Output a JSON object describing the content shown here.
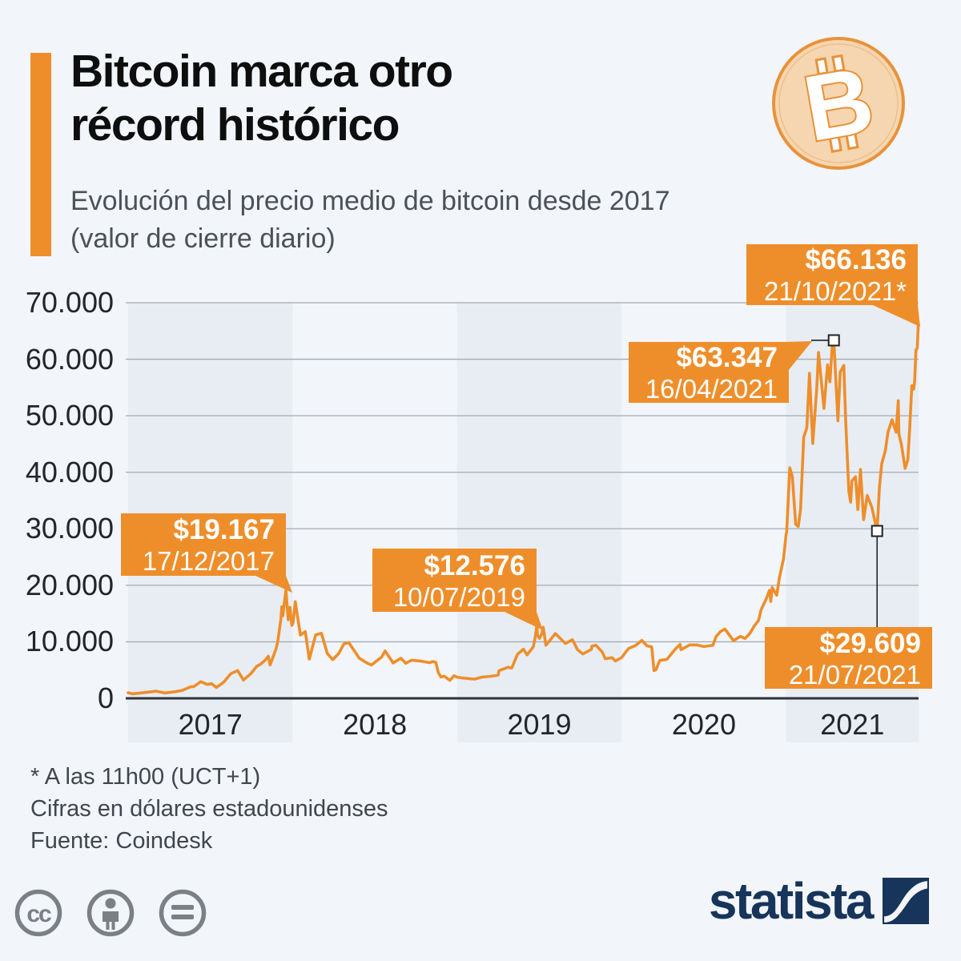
{
  "colors": {
    "accent_orange": "#EE8E2B",
    "coin_fill": "#F5D6B0",
    "band": "#e8edf4",
    "navy": "#17345A",
    "grid": "#a5abb4",
    "axis": "#2e3338"
  },
  "header": {
    "title_line1": "Bitcoin marca otro",
    "title_line2": "récord histórico",
    "subtitle_line1": "Evolución del precio medio de bitcoin desde 2017",
    "subtitle_line2": "(valor de cierre diario)",
    "coin_symbol": "B"
  },
  "chart_data": {
    "type": "line",
    "title": "Evolución del precio medio de bitcoin desde 2017 (valor de cierre diario)",
    "xlabel": "",
    "ylabel": "",
    "ylim": [
      0,
      70000
    ],
    "x_start": "01/01/2017",
    "x_end": "21/10/2021",
    "grid": true,
    "y_ticks": [
      {
        "value": 70000,
        "label": "70.000"
      },
      {
        "value": 60000,
        "label": "60.000"
      },
      {
        "value": 50000,
        "label": "50.000"
      },
      {
        "value": 40000,
        "label": "40.000"
      },
      {
        "value": 30000,
        "label": "30.000"
      },
      {
        "value": 20000,
        "label": "20.000"
      },
      {
        "value": 10000,
        "label": "10.000"
      },
      {
        "value": 0,
        "label": "0"
      }
    ],
    "x_ticks": [
      {
        "label": "2017",
        "shaded": true
      },
      {
        "label": "2018",
        "shaded": false
      },
      {
        "label": "2019",
        "shaded": true
      },
      {
        "label": "2020",
        "shaded": false
      },
      {
        "label": "2021",
        "shaded": true
      }
    ],
    "series": [
      {
        "name": "Precio medio de bitcoin (USD, cierre diario)",
        "color": "#EE8E2B",
        "points": [
          [
            0.0,
            995
          ],
          [
            0.027,
            800
          ],
          [
            0.082,
            965
          ],
          [
            0.148,
            1180
          ],
          [
            0.167,
            1280
          ],
          [
            0.225,
            950
          ],
          [
            0.288,
            1180
          ],
          [
            0.329,
            1420
          ],
          [
            0.381,
            2040
          ],
          [
            0.4,
            2080
          ],
          [
            0.441,
            2950
          ],
          [
            0.482,
            2450
          ],
          [
            0.507,
            2600
          ],
          [
            0.537,
            1930
          ],
          [
            0.581,
            2860
          ],
          [
            0.625,
            4380
          ],
          [
            0.666,
            4900
          ],
          [
            0.701,
            3230
          ],
          [
            0.748,
            4400
          ],
          [
            0.781,
            5650
          ],
          [
            0.803,
            6000
          ],
          [
            0.833,
            6750
          ],
          [
            0.852,
            7450
          ],
          [
            0.863,
            5900
          ],
          [
            0.899,
            8750
          ],
          [
            0.91,
            10100
          ],
          [
            0.929,
            14090
          ],
          [
            0.934,
            16200
          ],
          [
            0.94,
            14600
          ],
          [
            0.959,
            19167
          ],
          [
            0.973,
            13900
          ],
          [
            0.984,
            16100
          ],
          [
            0.995,
            12900
          ],
          [
            1.003,
            13400
          ],
          [
            1.016,
            17100
          ],
          [
            1.047,
            11200
          ],
          [
            1.077,
            11800
          ],
          [
            1.101,
            6950
          ],
          [
            1.14,
            11230
          ],
          [
            1.175,
            11500
          ],
          [
            1.211,
            7900
          ],
          [
            1.244,
            6850
          ],
          [
            1.28,
            7900
          ],
          [
            1.312,
            9650
          ],
          [
            1.342,
            9840
          ],
          [
            1.405,
            7100
          ],
          [
            1.449,
            6300
          ],
          [
            1.479,
            5900
          ],
          [
            1.542,
            7320
          ],
          [
            1.562,
            8400
          ],
          [
            1.611,
            6250
          ],
          [
            1.658,
            7100
          ],
          [
            1.688,
            6200
          ],
          [
            1.723,
            6750
          ],
          [
            1.775,
            6600
          ],
          [
            1.833,
            6300
          ],
          [
            1.852,
            6500
          ],
          [
            1.871,
            6350
          ],
          [
            1.885,
            4600
          ],
          [
            1.901,
            3780
          ],
          [
            1.923,
            3900
          ],
          [
            1.956,
            3180
          ],
          [
            1.981,
            4000
          ],
          [
            2.0,
            3740
          ],
          [
            2.027,
            3630
          ],
          [
            2.085,
            3440
          ],
          [
            2.107,
            3400
          ],
          [
            2.151,
            3760
          ],
          [
            2.203,
            3900
          ],
          [
            2.249,
            4100
          ],
          [
            2.255,
            4900
          ],
          [
            2.31,
            5500
          ],
          [
            2.332,
            5350
          ],
          [
            2.367,
            7800
          ],
          [
            2.403,
            8700
          ],
          [
            2.425,
            7700
          ],
          [
            2.463,
            9100
          ],
          [
            2.474,
            10700
          ],
          [
            2.485,
            12900
          ],
          [
            2.488,
            11160
          ],
          [
            2.501,
            10600
          ],
          [
            2.515,
            11450
          ],
          [
            2.523,
            12576
          ],
          [
            2.54,
            9400
          ],
          [
            2.597,
            11470
          ],
          [
            2.658,
            9700
          ],
          [
            2.701,
            10360
          ],
          [
            2.732,
            8600
          ],
          [
            2.764,
            7850
          ],
          [
            2.816,
            8660
          ],
          [
            2.819,
            9230
          ],
          [
            2.844,
            9400
          ],
          [
            2.882,
            8200
          ],
          [
            2.901,
            7000
          ],
          [
            2.942,
            7200
          ],
          [
            2.962,
            6600
          ],
          [
            3.0,
            7200
          ],
          [
            3.041,
            8800
          ],
          [
            3.085,
            9350
          ],
          [
            3.123,
            10250
          ],
          [
            3.153,
            9300
          ],
          [
            3.183,
            9100
          ],
          [
            3.197,
            4900
          ],
          [
            3.208,
            5050
          ],
          [
            3.232,
            6700
          ],
          [
            3.276,
            6900
          ],
          [
            3.328,
            8770
          ],
          [
            3.355,
            9550
          ],
          [
            3.361,
            8600
          ],
          [
            3.413,
            9450
          ],
          [
            3.456,
            9450
          ],
          [
            3.5,
            9150
          ],
          [
            3.555,
            9390
          ],
          [
            3.574,
            10900
          ],
          [
            3.598,
            11750
          ],
          [
            3.628,
            12250
          ],
          [
            3.68,
            10200
          ],
          [
            3.721,
            10950
          ],
          [
            3.751,
            10600
          ],
          [
            3.781,
            11550
          ],
          [
            3.806,
            12800
          ],
          [
            3.833,
            13800
          ],
          [
            3.847,
            15600
          ],
          [
            3.88,
            17650
          ],
          [
            3.899,
            19100
          ],
          [
            3.907,
            17150
          ],
          [
            3.915,
            19625
          ],
          [
            3.943,
            18250
          ],
          [
            3.959,
            21300
          ],
          [
            3.984,
            24700
          ],
          [
            4.0,
            29000
          ],
          [
            4.003,
            29400
          ],
          [
            4.022,
            40800
          ],
          [
            4.038,
            39200
          ],
          [
            4.058,
            30800
          ],
          [
            4.074,
            30400
          ],
          [
            4.088,
            33500
          ],
          [
            4.107,
            46200
          ],
          [
            4.126,
            47900
          ],
          [
            4.142,
            57500
          ],
          [
            4.162,
            45100
          ],
          [
            4.186,
            54900
          ],
          [
            4.197,
            61200
          ],
          [
            4.23,
            51300
          ],
          [
            4.252,
            59000
          ],
          [
            4.266,
            56000
          ],
          [
            4.282,
            63200
          ],
          [
            4.29,
            63347
          ],
          [
            4.315,
            49100
          ],
          [
            4.329,
            57750
          ],
          [
            4.351,
            58900
          ],
          [
            4.362,
            49150
          ],
          [
            4.381,
            36700
          ],
          [
            4.392,
            34700
          ],
          [
            4.4,
            38500
          ],
          [
            4.422,
            39200
          ],
          [
            4.436,
            33400
          ],
          [
            4.452,
            40500
          ],
          [
            4.471,
            31600
          ],
          [
            4.493,
            35900
          ],
          [
            4.521,
            33800
          ],
          [
            4.553,
            29609
          ],
          [
            4.567,
            37200
          ],
          [
            4.581,
            41500
          ],
          [
            4.603,
            43800
          ],
          [
            4.619,
            47100
          ],
          [
            4.644,
            49300
          ],
          [
            4.668,
            47100
          ],
          [
            4.682,
            52650
          ],
          [
            4.685,
            46800
          ],
          [
            4.701,
            44900
          ],
          [
            4.723,
            40700
          ],
          [
            4.74,
            42200
          ],
          [
            4.751,
            47700
          ],
          [
            4.764,
            55300
          ],
          [
            4.775,
            54700
          ],
          [
            4.781,
            56000
          ],
          [
            4.789,
            61600
          ],
          [
            4.797,
            62000
          ],
          [
            4.803,
            65990
          ],
          [
            4.805,
            66136
          ]
        ]
      }
    ],
    "annotations": [
      {
        "id": "peak-2017",
        "value_label": "$19.167",
        "date_label": "17/12/2017",
        "t": 0.959,
        "value": 19167,
        "marker": false
      },
      {
        "id": "peak-2019",
        "value_label": "$12.576",
        "date_label": "10/07/2019",
        "t": 2.523,
        "value": 12576,
        "marker": false
      },
      {
        "id": "peak-apr-2021",
        "value_label": "$63.347",
        "date_label": "16/04/2021",
        "t": 4.29,
        "value": 63347,
        "marker": true
      },
      {
        "id": "record-oct-2021",
        "value_label": "$66.136",
        "date_label": "21/10/2021*",
        "t": 4.805,
        "value": 66136,
        "marker": false
      },
      {
        "id": "low-jul-2021",
        "value_label": "$29.609",
        "date_label": "21/07/2021",
        "t": 4.553,
        "value": 29609,
        "marker": true
      }
    ]
  },
  "footer": {
    "note_asterisk": "* A las 11h00 (UCT+1)",
    "note_units": "Cifras en dólares estadounidenses",
    "source": "Fuente: Coindesk"
  },
  "branding": {
    "logo_text": "statista",
    "cc_icon_1": "cc",
    "license_icons": [
      "cc-icon",
      "attribution-person-icon",
      "equals-no-derivatives-icon"
    ]
  }
}
